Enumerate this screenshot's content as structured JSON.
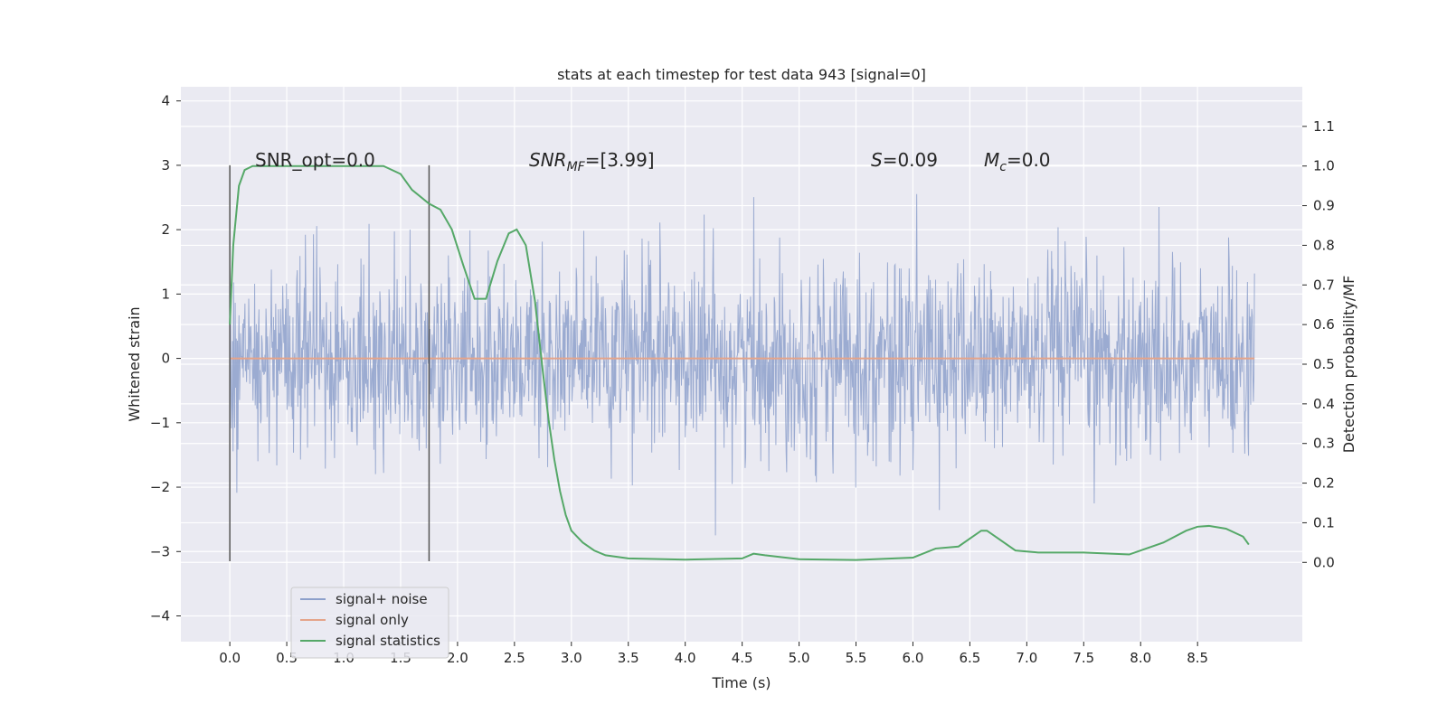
{
  "chart_data": {
    "type": "line",
    "title": "stats at each timestep for test data 943 [signal=0]",
    "xlabel": "Time (s)",
    "ylabel": "Whitened strain",
    "y2label": "Detection probability/MF",
    "xlim": [
      -0.43,
      9.42
    ],
    "ylim": [
      -4.4,
      4.22
    ],
    "y2lim": [
      -0.2,
      1.2
    ],
    "x_ticks": [
      "0.0",
      "0.5",
      "1.0",
      "1.5",
      "2.0",
      "2.5",
      "3.0",
      "3.5",
      "4.0",
      "4.5",
      "5.0",
      "5.5",
      "6.0",
      "6.5",
      "7.0",
      "7.5",
      "8.0",
      "8.5"
    ],
    "y_ticks": [
      "4",
      "3",
      "2",
      "1",
      "0",
      "−1",
      "−2",
      "−3",
      "−4"
    ],
    "y2_ticks": [
      "1.1",
      "1.0",
      "0.9",
      "0.8",
      "0.7",
      "0.6",
      "0.5",
      "0.4",
      "0.3",
      "0.2",
      "0.1",
      "0.0"
    ],
    "grid": true,
    "legend_position": "lower-left",
    "annotations": {
      "snr_opt": "SNR_opt=0.0",
      "snr_mf_main": "SNR",
      "snr_mf_sub": "MF",
      "snr_mf_value": "=[3.99]",
      "s_sym": "S",
      "s_value": "=0.09",
      "mc_sym": "M",
      "mc_sub": "c",
      "mc_value": "=0.0"
    },
    "vertical_markers": [
      0.0,
      1.75
    ],
    "series": [
      {
        "name": "signal+ noise",
        "color": "#8da0cb",
        "axis": "left",
        "kind": "noise",
        "range": [
          0.0,
          9.0
        ],
        "std": 0.75
      },
      {
        "name": "signal only",
        "color": "#e5a48a",
        "axis": "left",
        "x": [
          0.0,
          9.0
        ],
        "values": [
          0.0,
          0.0
        ]
      },
      {
        "name": "signal statistics",
        "color": "#55a868",
        "axis": "right",
        "x": [
          0.0,
          0.03,
          0.08,
          0.13,
          0.2,
          0.3,
          0.5,
          0.8,
          1.0,
          1.2,
          1.35,
          1.5,
          1.6,
          1.75,
          1.85,
          1.95,
          2.05,
          2.15,
          2.25,
          2.35,
          2.45,
          2.52,
          2.6,
          2.68,
          2.75,
          2.8,
          2.85,
          2.9,
          2.95,
          3.0,
          3.1,
          3.2,
          3.3,
          3.5,
          4.0,
          4.5,
          4.6,
          4.7,
          5.0,
          5.5,
          6.0,
          6.2,
          6.4,
          6.5,
          6.6,
          6.65,
          6.75,
          6.9,
          7.1,
          7.5,
          7.9,
          8.2,
          8.4,
          8.5,
          8.6,
          8.75,
          8.9,
          8.95
        ],
        "values": [
          0.6,
          0.8,
          0.95,
          0.99,
          1.0,
          1.0,
          1.0,
          1.0,
          1.0,
          1.0,
          1.0,
          0.98,
          0.94,
          0.905,
          0.89,
          0.84,
          0.75,
          0.665,
          0.665,
          0.76,
          0.83,
          0.84,
          0.8,
          0.66,
          0.48,
          0.36,
          0.26,
          0.18,
          0.12,
          0.08,
          0.05,
          0.03,
          0.018,
          0.01,
          0.007,
          0.01,
          0.022,
          0.018,
          0.008,
          0.006,
          0.012,
          0.035,
          0.04,
          0.06,
          0.08,
          0.08,
          0.06,
          0.03,
          0.025,
          0.025,
          0.02,
          0.05,
          0.08,
          0.09,
          0.092,
          0.085,
          0.065,
          0.045
        ]
      }
    ]
  }
}
